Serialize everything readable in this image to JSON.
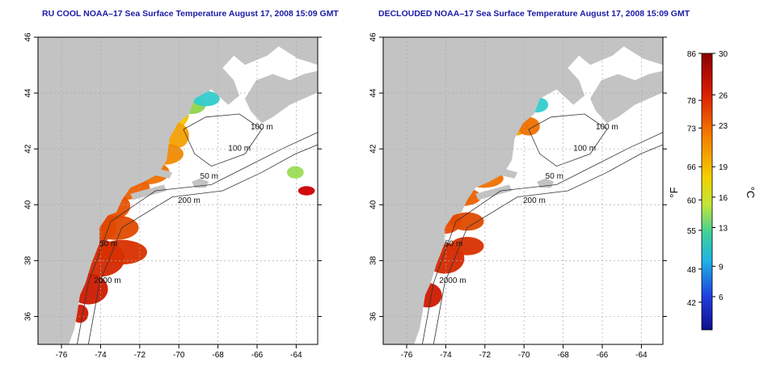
{
  "panels": [
    {
      "id": "left",
      "title": "RU COOL NOAA–17 Sea Surface Temperature August 17, 2008 15:09 GMT",
      "x_ticks": [
        "-76",
        "-74",
        "-72",
        "-70",
        "-68",
        "-66",
        "-64"
      ],
      "y_ticks": [
        "36",
        "38",
        "40",
        "42",
        "44",
        "46"
      ],
      "contour_labels": [
        "100 m",
        "100 m",
        "50 m",
        "200 m",
        "50 m",
        "2000 m"
      ]
    },
    {
      "id": "right",
      "title": "DECLOUDED NOAA–17 Sea Surface Temperature August 17, 2008 15:09 GMT",
      "x_ticks": [
        "-76",
        "-74",
        "-72",
        "-70",
        "-68",
        "-66",
        "-64"
      ],
      "y_ticks": [
        "36",
        "38",
        "40",
        "42",
        "44",
        "46"
      ],
      "contour_labels": [
        "100 m",
        "100 m",
        "50 m",
        "200 m",
        "50 m",
        "2000 m"
      ]
    }
  ],
  "colorbar": {
    "fahrenheit_ticks": [
      "86",
      "78",
      "73",
      "66",
      "60",
      "55",
      "48",
      "42"
    ],
    "celsius_ticks": [
      "30",
      "26",
      "23",
      "19",
      "16",
      "13",
      "9",
      "6"
    ],
    "fahrenheit_unit": "°F",
    "celsius_unit": "°C"
  },
  "colors": {
    "land": "#c3c3c3",
    "ocean": "#ffffff",
    "title": "#1a1aa6",
    "grid": "#aaaaaa"
  }
}
